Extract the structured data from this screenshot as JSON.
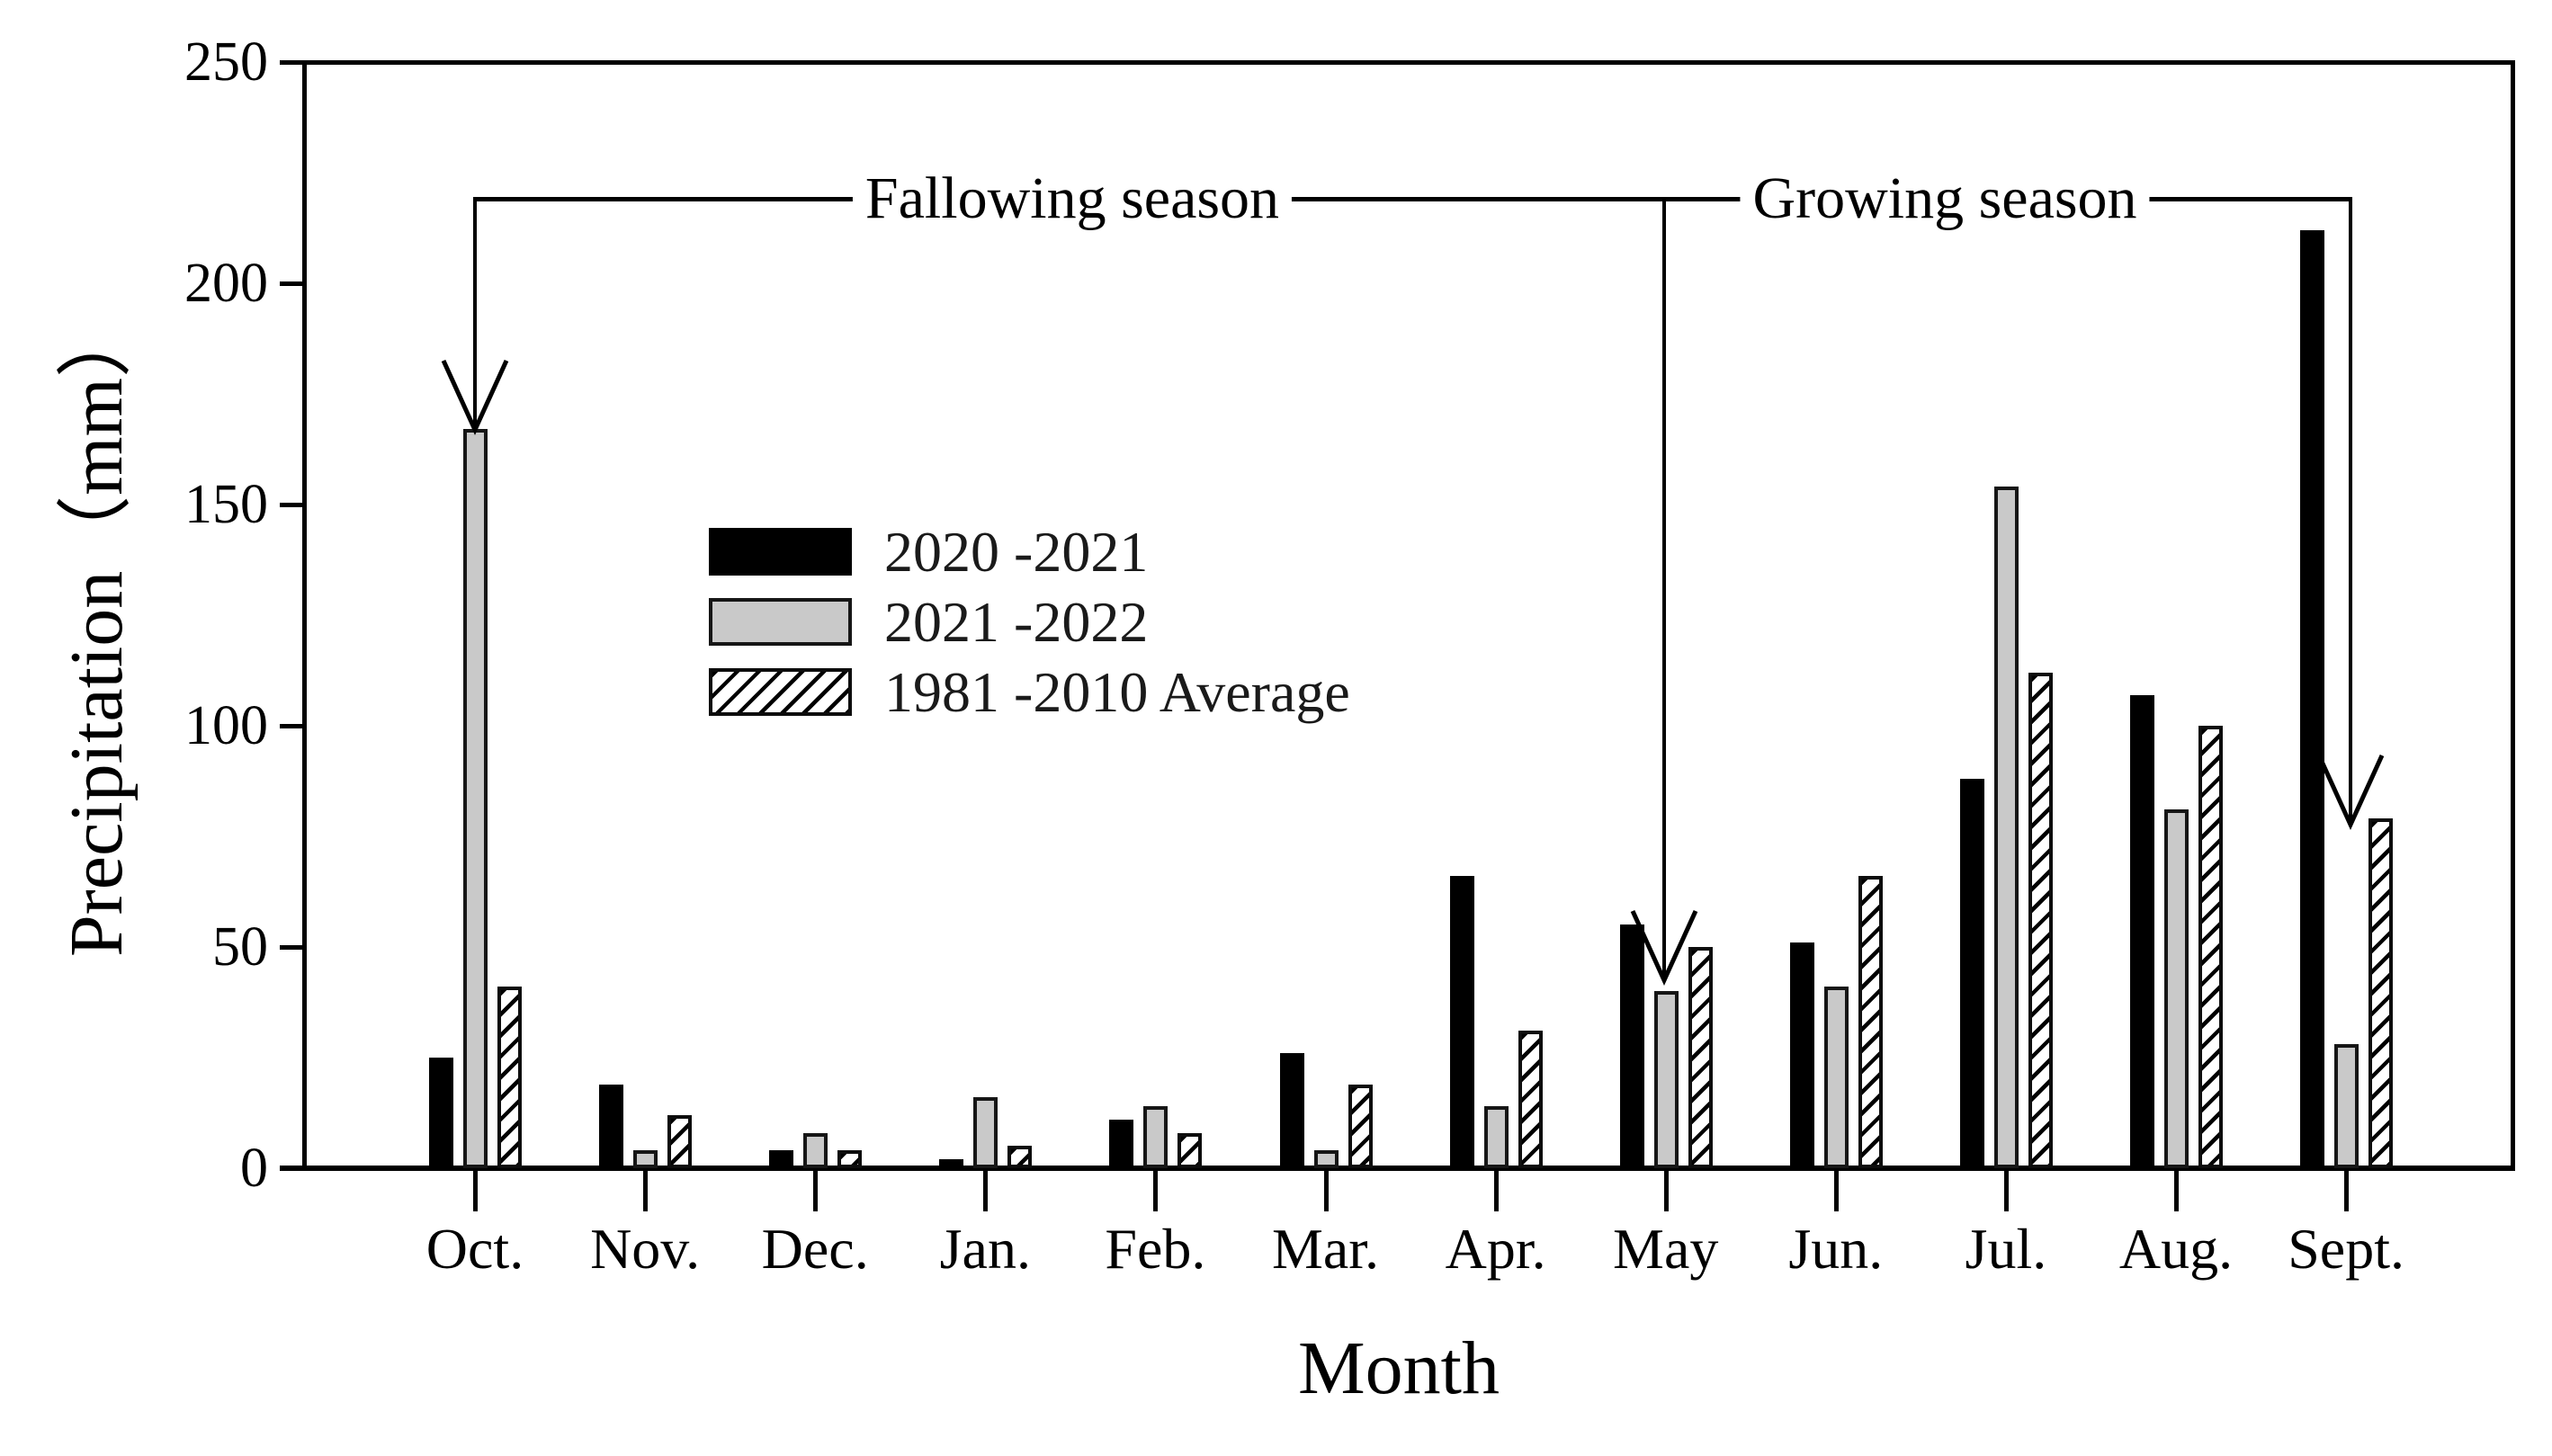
{
  "figure": {
    "y_axis_title": "Precipitation（mm）",
    "x_axis_title": "Month"
  },
  "annotations": {
    "fallowing": "Fallowing season",
    "growing": "Growing season"
  },
  "legend": {
    "items": [
      {
        "label": "2020 -2021",
        "swatch": "black"
      },
      {
        "label": "2021 -2022",
        "swatch": "gray"
      },
      {
        "label": "1981 -2010 Average",
        "swatch": "hatch"
      }
    ]
  },
  "colors": {
    "black_series": "#000000",
    "gray_series": "#c9c9c9",
    "hatch_lines": "#000000",
    "axis": "#000000"
  },
  "chart_data": {
    "type": "bar",
    "title": "",
    "xlabel": "Month",
    "ylabel": "Precipitation（mm）",
    "ylim": [
      0,
      250
    ],
    "yticks": [
      0,
      50,
      100,
      150,
      200,
      250
    ],
    "grid": false,
    "legend_position": "upper-left-inside",
    "categories": [
      "Oct.",
      "Nov.",
      "Dec.",
      "Jan.",
      "Feb.",
      "Mar.",
      "Apr.",
      "May",
      "Jun.",
      "Jul.",
      "Aug.",
      "Sept."
    ],
    "series": [
      {
        "name": "2020 -2021",
        "style": "black",
        "values": [
          25,
          19,
          4,
          2,
          11,
          26,
          66,
          55,
          51,
          88,
          107,
          212
        ]
      },
      {
        "name": "2021 -2022",
        "style": "gray",
        "values": [
          167,
          4,
          8,
          16,
          14,
          4,
          14,
          40,
          41,
          154,
          81,
          28
        ]
      },
      {
        "name": "1981 -2010 Average",
        "style": "hatch",
        "values": [
          41,
          12,
          4,
          5,
          8,
          19,
          31,
          50,
          66,
          112,
          100,
          79
        ]
      }
    ],
    "season_annotations": [
      {
        "label": "Fallowing season",
        "bracket_level_mm": 219,
        "from_month": "Oct.",
        "to_month": "May",
        "arrow_points_to": "Oct. 2021 -2022 bar top"
      },
      {
        "label": "Growing season",
        "bracket_level_mm": 219,
        "from_month": "May",
        "to_month": "Sept.",
        "arrow_points_to": "Sept. 1981 -2010 Average bar top"
      }
    ]
  }
}
